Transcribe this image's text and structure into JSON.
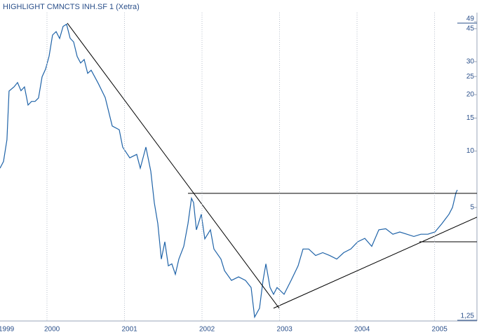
{
  "chart_data": {
    "type": "line",
    "title": "HIGHLIGHT CMNCTS INH.SF 1 (Xetra)",
    "color": "#1f63a8",
    "log_y": true,
    "grid_x": true,
    "x": [
      1999.394,
      1999.439,
      1999.484,
      1999.511,
      1999.575,
      1999.62,
      1999.665,
      1999.71,
      1999.756,
      1999.801,
      1999.846,
      1999.891,
      1999.937,
      1999.982,
      2000.027,
      2000.072,
      2000.118,
      2000.163,
      2000.208,
      2000.253,
      2000.299,
      2000.344,
      2000.389,
      2000.434,
      2000.48,
      2000.525,
      2000.57,
      2000.661,
      2000.751,
      2000.842,
      2000.932,
      2000.977,
      2001.068,
      2001.158,
      2001.204,
      2001.276,
      2001.339,
      2001.385,
      2001.43,
      2001.475,
      2001.52,
      2001.566,
      2001.611,
      2001.656,
      2001.701,
      2001.765,
      2001.819,
      2001.864,
      2001.891,
      2001.928,
      2001.991,
      2002.036,
      2002.109,
      2002.154,
      2002.244,
      2002.29,
      2002.38,
      2002.471,
      2002.561,
      2002.633,
      2002.679,
      2002.742,
      2002.787,
      2002.824,
      2002.878,
      2002.923,
      2002.968,
      2003.059,
      2003.149,
      2003.24,
      2003.303,
      2003.376,
      2003.466,
      2003.557,
      2003.647,
      2003.738,
      2003.828,
      2003.919,
      2004.009,
      2004.1,
      2004.19,
      2004.281,
      2004.371,
      2004.462,
      2004.552,
      2004.643,
      2004.733,
      2004.824,
      2004.914,
      2005.005,
      2005.095,
      2005.186,
      2005.231,
      2005.276,
      2005.294
    ],
    "values": [
      8.1,
      8.8,
      11.5,
      20.9,
      22,
      23.2,
      21,
      22,
      17.6,
      18.4,
      18.4,
      19.2,
      24.9,
      27.4,
      32.1,
      41.6,
      43.4,
      39.9,
      46.3,
      47.5,
      40,
      38.2,
      32,
      29.5,
      30.8,
      26,
      27,
      23,
      19.3,
      13.6,
      13,
      10.5,
      9.2,
      9.6,
      8.1,
      10.5,
      7.8,
      5.3,
      4.1,
      2.65,
      3.28,
      2.44,
      2.5,
      2.2,
      2.65,
      3.1,
      4.1,
      5.6,
      5.3,
      3.8,
      4.6,
      3.4,
      3.8,
      3.0,
      2.65,
      2.3,
      2.04,
      2.13,
      2.04,
      1.87,
      1.3,
      1.45,
      2.04,
      2.5,
      1.87,
      1.72,
      1.87,
      1.72,
      2.04,
      2.44,
      3.0,
      3.0,
      2.77,
      2.87,
      2.77,
      2.65,
      2.87,
      3.0,
      3.28,
      3.42,
      3.1,
      3.8,
      3.85,
      3.6,
      3.7,
      3.6,
      3.5,
      3.6,
      3.6,
      3.7,
      4.1,
      4.6,
      5.0,
      6.0,
      6.2
    ],
    "trend_lines": [
      {
        "x": [
          2000.262,
          2002.995
        ],
        "y": [
          48.2,
          1.45
        ]
      },
      {
        "x": [
          2001.819,
          2005.547
        ],
        "y": [
          5.95,
          5.95
        ]
      },
      {
        "x": [
          2004.805,
          2005.547
        ],
        "y": [
          3.28,
          3.28
        ]
      },
      {
        "x": [
          2002.923,
          2005.547
        ],
        "y": [
          1.45,
          4.44
        ]
      }
    ],
    "xlim": [
      1999.394,
      2005.547
    ],
    "xticks": [
      1999,
      2000,
      2001,
      2002,
      2003,
      2004,
      2005
    ],
    "ylim": [
      1.25,
      49
    ],
    "yticks": [
      49,
      45,
      30,
      25,
      20,
      15,
      10,
      5,
      {
        "value": 1.25,
        "label": "1,25"
      }
    ]
  }
}
